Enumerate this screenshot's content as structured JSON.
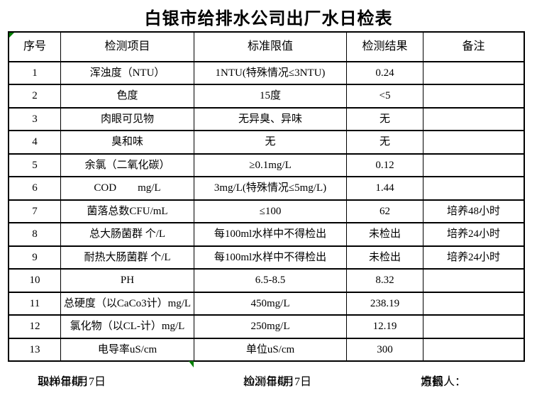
{
  "title": "白银市给排水公司出厂水日检表",
  "colors": {
    "border": "#000000",
    "background": "#ffffff",
    "marker_green": "#008000"
  },
  "markers": {
    "top_left_corner": "excel-green-corner-triangle",
    "below_table": "excel-green-fill-handle-triangle"
  },
  "table": {
    "headers": [
      "序号",
      "检测项目",
      "标准限值",
      "检测结果",
      "备注"
    ],
    "rows": [
      {
        "no": "1",
        "item": "浑浊度（NTU）",
        "limit": "1NTU(特殊情况≤3NTU)",
        "result": "0.24",
        "note": ""
      },
      {
        "no": "2",
        "item": "色度",
        "limit": "15度",
        "result": "<5",
        "note": ""
      },
      {
        "no": "3",
        "item": "肉眼可见物",
        "limit": "无异臭、异味",
        "result": "无",
        "note": ""
      },
      {
        "no": "4",
        "item": "臭和味",
        "limit": "无",
        "result": "无",
        "note": ""
      },
      {
        "no": "5",
        "item": "余氯（二氧化碳）",
        "limit": "≥0.1mg/L",
        "result": "0.12",
        "note": ""
      },
      {
        "no": "6",
        "item": "COD        mg/L",
        "limit": "3mg/L(特殊情况≤5mg/L)",
        "result": "1.44",
        "note": ""
      },
      {
        "no": "7",
        "item": "菌落总数CFU/mL",
        "limit": "≤100",
        "result": "62",
        "note": "培养48小时"
      },
      {
        "no": "8",
        "item": "总大肠菌群 个/L",
        "limit": "每100ml水样中不得检出",
        "result": "未检出",
        "note": "培养24小时"
      },
      {
        "no": "9",
        "item": "耐热大肠菌群 个/L",
        "limit": "每100ml水样中不得检出",
        "result": "未检出",
        "note": "培养24小时"
      },
      {
        "no": "10",
        "item": "PH",
        "limit": "6.5-8.5",
        "result": "8.32",
        "note": ""
      },
      {
        "no": "11",
        "item": "总硬度（以CaCo3计）mg/L",
        "limit": "450mg/L",
        "result": "238.19",
        "note": ""
      },
      {
        "no": "12",
        "item": "氯化物（以CL-计）mg/L",
        "limit": "250mg/L",
        "result": "12.19",
        "note": ""
      },
      {
        "no": "13",
        "item": "电导率uS/cm",
        "limit": "单位uS/cm",
        "result": "300",
        "note": ""
      }
    ]
  },
  "footer": {
    "items": [
      {
        "label": "取样日期：",
        "value": "2020年6月7日"
      },
      {
        "label": "检测日期：",
        "value": "2020年6月7日"
      },
      {
        "label": "填报人：",
        "value": "方鹤"
      }
    ]
  }
}
